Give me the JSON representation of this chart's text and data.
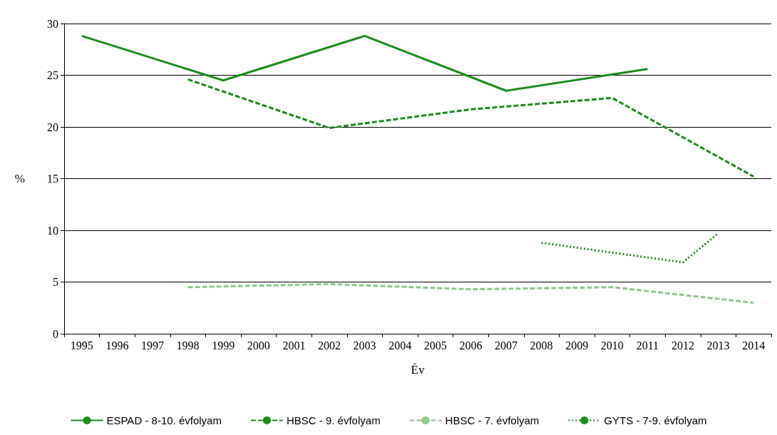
{
  "chart_data": {
    "type": "line",
    "xlabel": "Év",
    "ylabel": "%",
    "categories": [
      "1995",
      "1996",
      "1997",
      "1998",
      "1999",
      "2000",
      "2001",
      "2002",
      "2003",
      "2004",
      "2005",
      "2006",
      "2007",
      "2008",
      "2009",
      "2010",
      "2011",
      "2012",
      "2013",
      "2014"
    ],
    "series": [
      {
        "name": "ESPAD - 8-10. évfolyam",
        "color": "#1e8c1e",
        "line_style": "solid",
        "values": [
          28.8,
          null,
          null,
          null,
          24.5,
          null,
          null,
          null,
          28.8,
          null,
          null,
          null,
          23.5,
          null,
          null,
          null,
          25.6,
          null,
          null,
          null
        ]
      },
      {
        "name": "HBSC - 9. évfolyam",
        "color": "#1e8c1e",
        "line_style": "dashed",
        "values": [
          null,
          null,
          null,
          24.6,
          null,
          null,
          null,
          19.9,
          null,
          null,
          null,
          21.7,
          null,
          null,
          null,
          22.8,
          null,
          null,
          null,
          15.2
        ]
      },
      {
        "name": "HBSC - 7. évfolyam",
        "color": "#8cc88c",
        "line_style": "dashed",
        "values": [
          null,
          null,
          null,
          4.5,
          null,
          null,
          null,
          4.8,
          null,
          null,
          null,
          4.3,
          null,
          null,
          null,
          4.5,
          null,
          null,
          null,
          3.0
        ]
      },
      {
        "name": "GYTS - 7-9. évfolyam",
        "color": "#1e8c1e",
        "line_style": "dotted",
        "values": [
          null,
          null,
          null,
          null,
          null,
          null,
          null,
          null,
          null,
          null,
          null,
          null,
          null,
          8.8,
          null,
          null,
          null,
          6.9,
          9.7,
          null
        ]
      }
    ],
    "ylim": [
      0,
      30
    ],
    "yticks": [
      0,
      5,
      10,
      15,
      20,
      25,
      30
    ],
    "grid": "y",
    "legend": "bottom",
    "marker": "none"
  }
}
